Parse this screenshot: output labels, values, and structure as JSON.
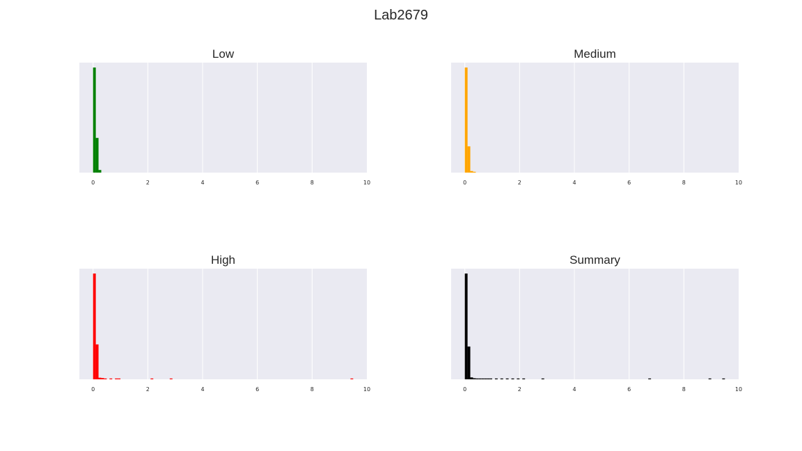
{
  "figure": {
    "title": "Lab2679"
  },
  "chart_data": [
    {
      "type": "bar",
      "title": "Low",
      "color": "#008000",
      "xlim": [
        -0.5,
        10
      ],
      "xticks": [
        0,
        2,
        4,
        6,
        8,
        10
      ],
      "grid": true,
      "bins": [
        {
          "x0": 0.0,
          "x1": 0.1,
          "count": 1000
        },
        {
          "x0": 0.1,
          "x1": 0.2,
          "count": 330
        },
        {
          "x0": 0.2,
          "x1": 0.3,
          "count": 25
        }
      ]
    },
    {
      "type": "bar",
      "title": "Medium",
      "color": "#ffa500",
      "xlim": [
        -0.5,
        10
      ],
      "xticks": [
        0,
        2,
        4,
        6,
        8,
        10
      ],
      "grid": true,
      "bins": [
        {
          "x0": 0.0,
          "x1": 0.1,
          "count": 1000
        },
        {
          "x0": 0.1,
          "x1": 0.2,
          "count": 250
        },
        {
          "x0": 0.2,
          "x1": 0.3,
          "count": 15
        },
        {
          "x0": 0.3,
          "x1": 0.4,
          "count": 6
        }
      ]
    },
    {
      "type": "bar",
      "title": "High",
      "color": "#ff0000",
      "xlim": [
        -0.5,
        10
      ],
      "xticks": [
        0,
        2,
        4,
        6,
        8,
        10
      ],
      "grid": true,
      "bins": [
        {
          "x0": 0.0,
          "x1": 0.1,
          "count": 1000
        },
        {
          "x0": 0.1,
          "x1": 0.2,
          "count": 330
        },
        {
          "x0": 0.2,
          "x1": 0.3,
          "count": 15
        },
        {
          "x0": 0.3,
          "x1": 0.4,
          "count": 12
        },
        {
          "x0": 0.4,
          "x1": 0.5,
          "count": 6
        },
        {
          "x0": 0.6,
          "x1": 0.7,
          "count": 5
        },
        {
          "x0": 0.8,
          "x1": 0.9,
          "count": 6
        },
        {
          "x0": 0.9,
          "x1": 1.0,
          "count": 6
        },
        {
          "x0": 2.1,
          "x1": 2.2,
          "count": 5
        },
        {
          "x0": 2.8,
          "x1": 2.9,
          "count": 5
        },
        {
          "x0": 9.4,
          "x1": 9.5,
          "count": 5
        }
      ]
    },
    {
      "type": "bar",
      "title": "Summary",
      "color": "#000000",
      "xlim": [
        -0.5,
        10
      ],
      "xticks": [
        0,
        2,
        4,
        6,
        8,
        10
      ],
      "grid": true,
      "bins": [
        {
          "x0": 0.0,
          "x1": 0.1,
          "count": 1000
        },
        {
          "x0": 0.1,
          "x1": 0.2,
          "count": 310
        },
        {
          "x0": 0.2,
          "x1": 0.3,
          "count": 18
        },
        {
          "x0": 0.3,
          "x1": 0.4,
          "count": 10
        },
        {
          "x0": 0.4,
          "x1": 0.5,
          "count": 6
        },
        {
          "x0": 0.5,
          "x1": 0.6,
          "count": 6
        },
        {
          "x0": 0.6,
          "x1": 0.7,
          "count": 5
        },
        {
          "x0": 0.7,
          "x1": 0.8,
          "count": 5
        },
        {
          "x0": 0.8,
          "x1": 0.9,
          "count": 5
        },
        {
          "x0": 0.9,
          "x1": 1.0,
          "count": 5
        },
        {
          "x0": 1.1,
          "x1": 1.2,
          "count": 4
        },
        {
          "x0": 1.3,
          "x1": 1.4,
          "count": 4
        },
        {
          "x0": 1.5,
          "x1": 1.6,
          "count": 4
        },
        {
          "x0": 1.7,
          "x1": 1.8,
          "count": 4
        },
        {
          "x0": 1.9,
          "x1": 2.0,
          "count": 4
        },
        {
          "x0": 2.1,
          "x1": 2.2,
          "count": 4
        },
        {
          "x0": 2.8,
          "x1": 2.9,
          "count": 4
        },
        {
          "x0": 6.7,
          "x1": 6.8,
          "count": 4
        },
        {
          "x0": 8.9,
          "x1": 9.0,
          "count": 4
        },
        {
          "x0": 9.4,
          "x1": 9.5,
          "count": 4
        }
      ]
    }
  ]
}
